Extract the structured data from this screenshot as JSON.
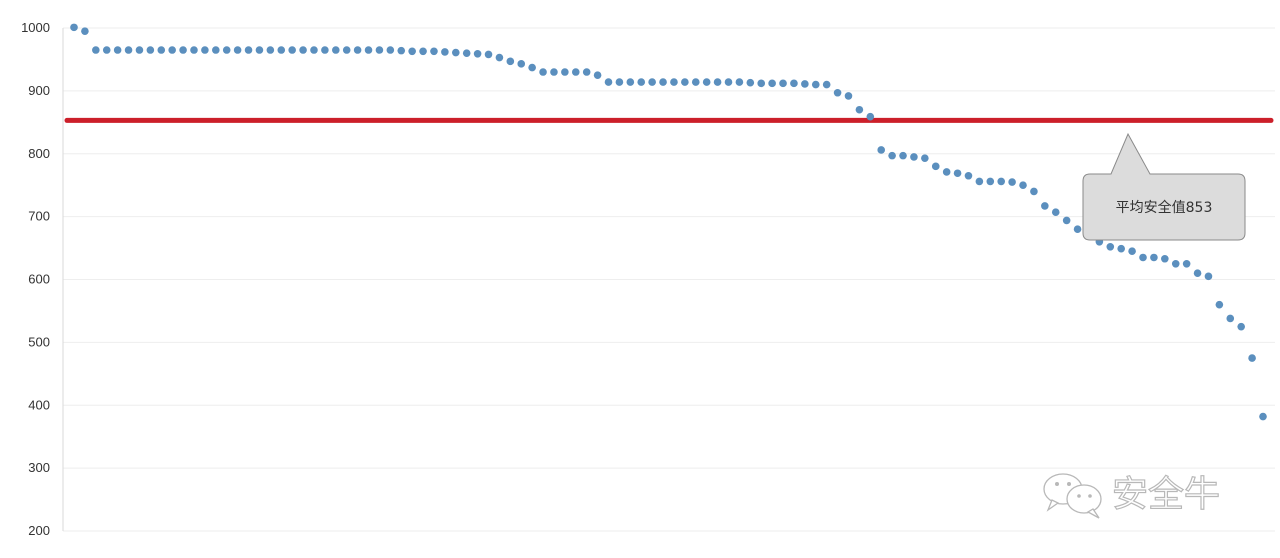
{
  "chart_data": {
    "type": "scatter",
    "title": "",
    "xlabel": "",
    "ylabel": "",
    "ylim": [
      200,
      1000
    ],
    "y_ticks": [
      200,
      300,
      400,
      500,
      600,
      700,
      800,
      900,
      1000
    ],
    "grid": true,
    "legend": "none",
    "point_color": "#5b8fbe",
    "values": [
      1001,
      995,
      965,
      965,
      965,
      965,
      965,
      965,
      965,
      965,
      965,
      965,
      965,
      965,
      965,
      965,
      965,
      965,
      965,
      965,
      965,
      965,
      965,
      965,
      965,
      965,
      965,
      965,
      965,
      965,
      964,
      963,
      963,
      963,
      962,
      961,
      960,
      959,
      958,
      953,
      947,
      943,
      937,
      930,
      930,
      930,
      930,
      930,
      925,
      914,
      914,
      914,
      914,
      914,
      914,
      914,
      914,
      914,
      914,
      914,
      914,
      914,
      913,
      912,
      912,
      912,
      912,
      911,
      910,
      910,
      897,
      892,
      870,
      859,
      806,
      797,
      797,
      795,
      793,
      780,
      771,
      769,
      765,
      756,
      756,
      756,
      755,
      750,
      740,
      717,
      707,
      694,
      680,
      671,
      660,
      652,
      649,
      645,
      635,
      635,
      633,
      625,
      625,
      610,
      605,
      560,
      538,
      525,
      475,
      382
    ],
    "reference_line": {
      "value": 853,
      "color": "#cc1f2a"
    },
    "annotation": {
      "text": "平均安全值853",
      "target_value": 853
    }
  },
  "watermark": {
    "text": "安全牛",
    "icon": "wechat-icon"
  }
}
